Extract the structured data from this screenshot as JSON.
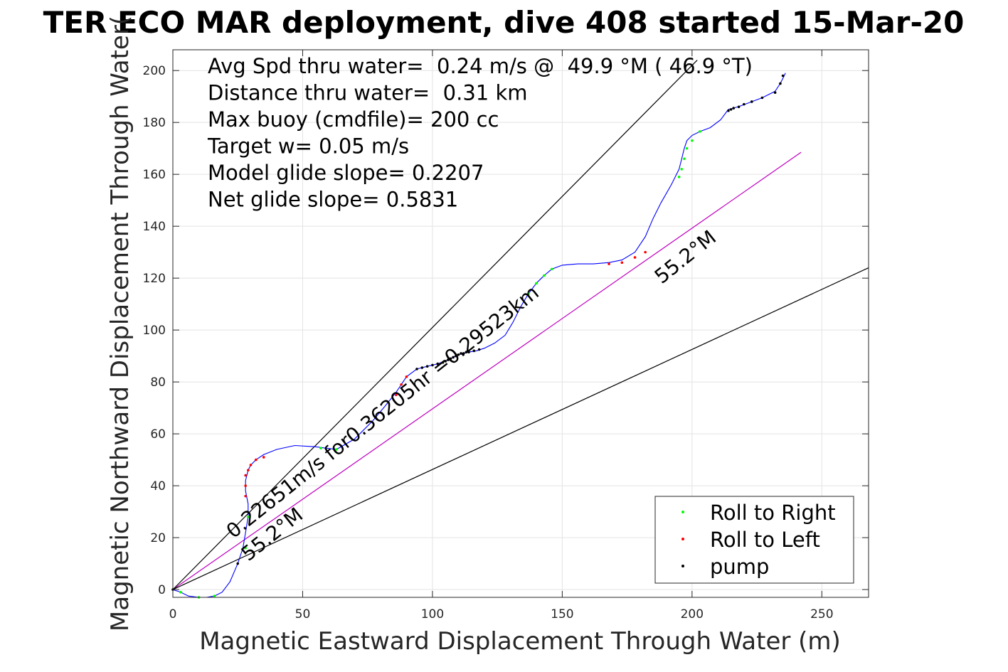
{
  "chart_data": {
    "type": "line",
    "title": "TER ECO MAR deployment, dive 408 started 15-Mar-20",
    "xlabel": "Magnetic Eastward Displacement Through Water (m)",
    "ylabel": "Magnetic Northward Displacement Through Water(",
    "xlim": [
      0,
      268
    ],
    "ylim": [
      -3,
      208
    ],
    "xticks": [
      0,
      50,
      100,
      150,
      200,
      250
    ],
    "yticks": [
      0,
      20,
      40,
      60,
      80,
      100,
      120,
      140,
      160,
      180,
      200
    ],
    "grid": true,
    "legend_position": "bottom-right",
    "colors": {
      "track": "#0000ff",
      "roll_right": "#00ff00",
      "roll_left": "#ff0000",
      "pump": "#000000",
      "heading_line": "#bf00bf",
      "envelope": "#000000"
    },
    "info_lines": [
      "Avg Spd thru water=  0.24 m/s @  49.9 °M ( 46.9 °T)",
      "Distance thru water=  0.31 km",
      "Max buoy (cmdfile)= 200 cc",
      "Target w= 0.05 m/s",
      "Model glide slope= 0.2207",
      "Net glide slope= 0.5831"
    ],
    "annotations": {
      "speed_text": "0.22651m/s for0.36205hr =0.29523km",
      "heading_upper": "55.2°M",
      "heading_lower": "55.2°M"
    },
    "series": [
      {
        "name": "track",
        "x": [
          0,
          3,
          6,
          10,
          13,
          16,
          19,
          22,
          25,
          27,
          28,
          29,
          29,
          28,
          28,
          29,
          30,
          32,
          35,
          40,
          47,
          55,
          63,
          70,
          77,
          82,
          86,
          88,
          90,
          94,
          98,
          102,
          106,
          108,
          110,
          112,
          114,
          117,
          120,
          124,
          128,
          131,
          134,
          137,
          140,
          143,
          146,
          150,
          156,
          162,
          168,
          173,
          178,
          182,
          185,
          188,
          192,
          195,
          196,
          197,
          198,
          200,
          203,
          207,
          211,
          214,
          216,
          219,
          223,
          227,
          232,
          234,
          235,
          236
        ],
        "y": [
          0,
          -1,
          -2.5,
          -3,
          -3,
          -2.5,
          -1,
          3,
          10,
          16,
          22,
          28,
          33,
          38,
          42,
          46,
          48,
          50,
          52,
          54,
          55.5,
          55,
          54,
          58,
          65,
          71,
          76,
          79,
          82,
          85,
          86,
          87,
          88.5,
          89.5,
          90.5,
          91,
          91.5,
          92,
          93,
          95,
          98,
          103,
          109,
          114,
          118,
          121,
          123.5,
          125,
          125.5,
          125.5,
          126,
          127,
          130,
          136,
          143,
          149,
          156,
          162,
          166,
          170,
          173,
          175,
          176.5,
          178,
          181,
          185,
          185.5,
          186.5,
          188,
          189.5,
          192,
          195,
          197,
          199
        ]
      },
      {
        "name": "Roll to Right",
        "x": [
          3,
          10,
          16,
          28,
          29,
          57,
          63,
          137,
          140,
          143,
          146,
          195,
          196,
          197,
          198,
          200,
          203
        ],
        "y": [
          -1,
          -3,
          -2.5,
          16,
          28,
          54.5,
          54,
          114,
          118,
          121,
          123.5,
          159,
          162,
          166,
          170,
          173,
          176.5
        ]
      },
      {
        "name": "Roll to Left",
        "x": [
          28,
          28,
          28,
          29,
          30,
          32,
          35,
          86,
          88,
          90,
          168,
          173,
          178,
          182
        ],
        "y": [
          36,
          40,
          44,
          46,
          48,
          50,
          51,
          75,
          79,
          82,
          125.5,
          126,
          128,
          130
        ]
      },
      {
        "name": "pump",
        "x": [
          0,
          25,
          94,
          96,
          98,
          100,
          102,
          104,
          105,
          106,
          107,
          108,
          109,
          110,
          111,
          112,
          113,
          114,
          116,
          118,
          214,
          215,
          216,
          218,
          220,
          223,
          227,
          232,
          234,
          235
        ],
        "y": [
          0,
          10,
          85,
          85.5,
          86,
          86.5,
          87,
          87.5,
          88,
          88.5,
          89,
          89.5,
          90,
          90.5,
          91,
          91,
          91.5,
          91.5,
          92,
          92.5,
          184.5,
          185,
          185.5,
          186,
          187,
          188,
          189.5,
          191.5,
          195,
          198
        ]
      }
    ],
    "reference_lines": [
      {
        "name": "heading",
        "x": [
          0,
          242
        ],
        "y": [
          0,
          168.5
        ]
      },
      {
        "name": "envelope-upper",
        "x": [
          0,
          202
        ],
        "y": [
          0,
          204
        ]
      },
      {
        "name": "envelope-lower",
        "x": [
          0,
          268
        ],
        "y": [
          0,
          124
        ]
      }
    ],
    "legend": [
      {
        "label": "Roll to Right",
        "color": "#00ff00"
      },
      {
        "label": "Roll to Left",
        "color": "#ff0000"
      },
      {
        "label": "pump",
        "color": "#000000"
      }
    ]
  }
}
